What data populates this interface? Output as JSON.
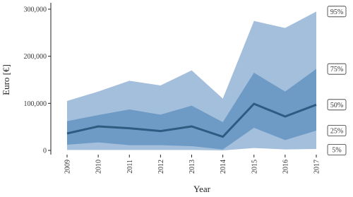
{
  "chart_data": {
    "type": "fan",
    "x_label": "Year",
    "y_label": "Euro [€]",
    "categories": [
      "2009",
      "2010",
      "2011",
      "2012",
      "2013",
      "2014",
      "2015",
      "2016",
      "2017"
    ],
    "series": [
      {
        "name": "5%",
        "color": "#a3bfdc",
        "values": [
          1000,
          1000,
          1000,
          1000,
          1000,
          0,
          5000,
          2000,
          3000
        ]
      },
      {
        "name": "25%",
        "color": "#6e9bc5",
        "values": [
          12000,
          17000,
          11000,
          11000,
          9000,
          2000,
          48000,
          22000,
          42000
        ]
      },
      {
        "name": "50%",
        "color": "#2e5b82",
        "values": [
          36000,
          51000,
          47000,
          41000,
          51000,
          29000,
          99000,
          72000,
          97000
        ]
      },
      {
        "name": "75%",
        "color": "#6e9bc5",
        "values": [
          62000,
          75000,
          87000,
          76000,
          95000,
          60000,
          165000,
          125000,
          173000
        ]
      },
      {
        "name": "95%",
        "color": "#a3bfdc",
        "values": [
          105000,
          125000,
          148000,
          138000,
          170000,
          110000,
          275000,
          260000,
          295000
        ]
      }
    ],
    "ylim": [
      0,
      300000
    ],
    "yticks": [
      0,
      {
        "value": 100000,
        "label": "100,000"
      },
      {
        "value": 200000,
        "label": "200,000"
      },
      {
        "value": 300000,
        "label": "300,000"
      }
    ]
  }
}
